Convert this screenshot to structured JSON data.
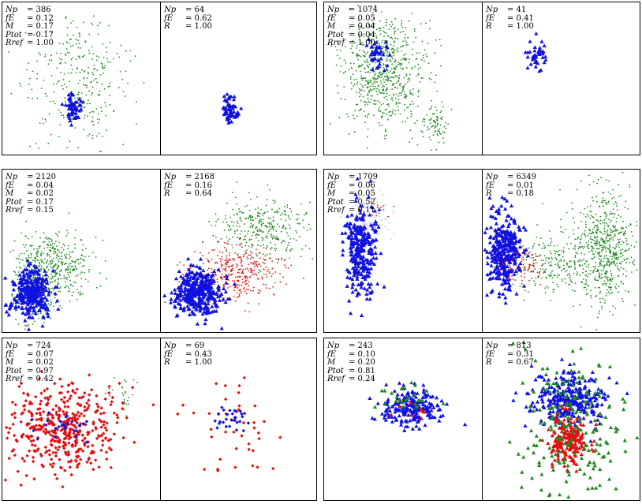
{
  "colors": {
    "green": "#1f8a1f",
    "blue": "#1010e0",
    "red": "#e01010"
  },
  "symbols": {
    "Np": "Np",
    "fE": "fE",
    "M": "M",
    "Ptot": "Ptot",
    "Rref": "Rref",
    "R": "R"
  },
  "chart_data": [
    {
      "type": "scatter",
      "panel": "top-left",
      "left": {
        "stats": {
          "Np": "= 386",
          "fE": "= 0.12",
          "M": "= 0.17",
          "Ptot": "= 0.17",
          "Rref": "= 1.00"
        },
        "clusters": [
          {
            "color": "green",
            "n": 300,
            "cx": 0.48,
            "cy": 0.52,
            "sx": 0.16,
            "sy": 0.22,
            "shape": "dot"
          },
          {
            "color": "blue",
            "n": 60,
            "cx": 0.45,
            "cy": 0.7,
            "sx": 0.03,
            "sy": 0.05,
            "shape": "tri"
          }
        ]
      },
      "right": {
        "stats": {
          "Np": "= 64",
          "fE": "= 0.62",
          "R": "= 1.00"
        },
        "clusters": [
          {
            "color": "blue",
            "n": 64,
            "cx": 0.45,
            "cy": 0.7,
            "sx": 0.03,
            "sy": 0.05,
            "shape": "tri"
          }
        ]
      }
    },
    {
      "type": "scatter",
      "panel": "top-right",
      "left": {
        "stats": {
          "Np": "= 1074",
          "fE": "= 0.05",
          "M": "= 0.04",
          "Ptot": "= 0.04",
          "Rref": "= 1.00"
        },
        "clusters": [
          {
            "color": "green",
            "n": 700,
            "cx": 0.38,
            "cy": 0.45,
            "sx": 0.14,
            "sy": 0.18,
            "shape": "dot"
          },
          {
            "color": "green",
            "n": 80,
            "cx": 0.7,
            "cy": 0.8,
            "sx": 0.04,
            "sy": 0.07,
            "shape": "dot"
          },
          {
            "color": "blue",
            "n": 40,
            "cx": 0.34,
            "cy": 0.34,
            "sx": 0.03,
            "sy": 0.05,
            "shape": "tri"
          }
        ]
      },
      "right": {
        "stats": {
          "Np": "= 41",
          "fE": "= 0.41",
          "R": "= 1.00"
        },
        "clusters": [
          {
            "color": "blue",
            "n": 41,
            "cx": 0.34,
            "cy": 0.34,
            "sx": 0.03,
            "sy": 0.05,
            "shape": "tri"
          }
        ]
      }
    },
    {
      "type": "scatter",
      "panel": "middle-left",
      "left": {
        "stats": {
          "Np": "= 2120",
          "fE": "= 0.04",
          "M": "= 0.02",
          "Ptot": "= 0.17",
          "Rref": "= 0.15"
        },
        "clusters": [
          {
            "color": "green",
            "n": 450,
            "cx": 0.32,
            "cy": 0.6,
            "sx": 0.12,
            "sy": 0.1,
            "shape": "dot"
          },
          {
            "color": "green",
            "n": 200,
            "cx": 0.2,
            "cy": 0.78,
            "sx": 0.08,
            "sy": 0.09,
            "shape": "dot"
          },
          {
            "color": "blue",
            "n": 300,
            "cx": 0.18,
            "cy": 0.76,
            "sx": 0.06,
            "sy": 0.08,
            "shape": "tri"
          }
        ]
      },
      "right": {
        "stats": {
          "Np": "= 2168",
          "fE": "= 0.16",
          "R": "= 0.64"
        },
        "clusters": [
          {
            "color": "green",
            "n": 320,
            "cx": 0.68,
            "cy": 0.35,
            "sx": 0.15,
            "sy": 0.1,
            "shape": "dot"
          },
          {
            "color": "red",
            "n": 350,
            "cx": 0.5,
            "cy": 0.62,
            "sx": 0.14,
            "sy": 0.09,
            "shape": "dot"
          },
          {
            "color": "blue",
            "n": 380,
            "cx": 0.24,
            "cy": 0.76,
            "sx": 0.08,
            "sy": 0.07,
            "shape": "tri"
          }
        ]
      }
    },
    {
      "type": "scatter",
      "panel": "middle-right",
      "left": {
        "stats": {
          "Np": "= 1709",
          "fE": "= 0.06",
          "M": "= 0.05",
          "Ptot": "= 0.52",
          "Rref": "= 0.11"
        },
        "clusters": [
          {
            "color": "blue",
            "n": 300,
            "cx": 0.23,
            "cy": 0.5,
            "sx": 0.05,
            "sy": 0.14,
            "shape": "tri"
          },
          {
            "color": "lightblue",
            "n": 80,
            "cx": 0.3,
            "cy": 0.3,
            "sx": 0.07,
            "sy": 0.08,
            "shape": "dot"
          },
          {
            "color": "red",
            "n": 12,
            "cx": 0.33,
            "cy": 0.25,
            "sx": 0.03,
            "sy": 0.03,
            "shape": "dot"
          }
        ]
      },
      "right": {
        "stats": {
          "Np": "= 6349",
          "fE": "= 0.01",
          "R": "= 0.18"
        },
        "clusters": [
          {
            "color": "green",
            "n": 600,
            "cx": 0.78,
            "cy": 0.5,
            "sx": 0.1,
            "sy": 0.18,
            "shape": "dot"
          },
          {
            "color": "green",
            "n": 250,
            "cx": 0.45,
            "cy": 0.58,
            "sx": 0.14,
            "sy": 0.1,
            "shape": "dot"
          },
          {
            "color": "blue",
            "n": 350,
            "cx": 0.14,
            "cy": 0.5,
            "sx": 0.05,
            "sy": 0.12,
            "shape": "tri"
          },
          {
            "color": "red",
            "n": 60,
            "cx": 0.26,
            "cy": 0.6,
            "sx": 0.07,
            "sy": 0.05,
            "shape": "dot"
          }
        ]
      }
    },
    {
      "type": "scatter",
      "panel": "bottom-left",
      "left": {
        "stats": {
          "Np": "= 724",
          "fE": "= 0.07",
          "M": "= 0.02",
          "Ptot": "= 0.97",
          "Rref": "= 0.42"
        },
        "clusters": [
          {
            "color": "red",
            "n": 450,
            "cx": 0.38,
            "cy": 0.55,
            "sx": 0.17,
            "sy": 0.14,
            "shape": "diamond"
          },
          {
            "color": "blue",
            "n": 25,
            "cx": 0.4,
            "cy": 0.55,
            "sx": 0.08,
            "sy": 0.05,
            "shape": "diamond"
          },
          {
            "color": "green",
            "n": 25,
            "cx": 0.78,
            "cy": 0.35,
            "sx": 0.05,
            "sy": 0.06,
            "shape": "dot"
          }
        ]
      },
      "right": {
        "stats": {
          "Np": "= 69",
          "fE": "= 0.43",
          "R": "= 1.00"
        },
        "clusters": [
          {
            "color": "red",
            "n": 40,
            "cx": 0.5,
            "cy": 0.6,
            "sx": 0.16,
            "sy": 0.16,
            "shape": "diamond"
          },
          {
            "color": "blue",
            "n": 29,
            "cx": 0.45,
            "cy": 0.5,
            "sx": 0.06,
            "sy": 0.04,
            "shape": "diamond"
          }
        ]
      }
    },
    {
      "type": "scatter",
      "panel": "bottom-right",
      "left": {
        "stats": {
          "Np": "= 243",
          "fE": "= 0.10",
          "M": "= 0.20",
          "Ptot": "= 0.81",
          "Rref": "= 0.24"
        },
        "clusters": [
          {
            "color": "blue",
            "n": 210,
            "cx": 0.55,
            "cy": 0.43,
            "sx": 0.1,
            "sy": 0.06,
            "shape": "tri"
          },
          {
            "color": "green",
            "n": 25,
            "cx": 0.55,
            "cy": 0.38,
            "sx": 0.1,
            "sy": 0.05,
            "shape": "tri"
          },
          {
            "color": "red",
            "n": 8,
            "cx": 0.55,
            "cy": 0.48,
            "sx": 0.08,
            "sy": 0.04,
            "shape": "tri"
          }
        ]
      },
      "right": {
        "stats": {
          "Np": "= 813",
          "fE": "= 0.31",
          "R": "= 0.67"
        },
        "clusters": [
          {
            "color": "blue",
            "n": 300,
            "cx": 0.55,
            "cy": 0.38,
            "sx": 0.12,
            "sy": 0.08,
            "shape": "tri"
          },
          {
            "color": "red",
            "n": 200,
            "cx": 0.55,
            "cy": 0.62,
            "sx": 0.07,
            "sy": 0.08,
            "shape": "tri"
          },
          {
            "color": "green",
            "n": 200,
            "cx": 0.55,
            "cy": 0.55,
            "sx": 0.18,
            "sy": 0.28,
            "shape": "tri"
          }
        ]
      }
    }
  ]
}
